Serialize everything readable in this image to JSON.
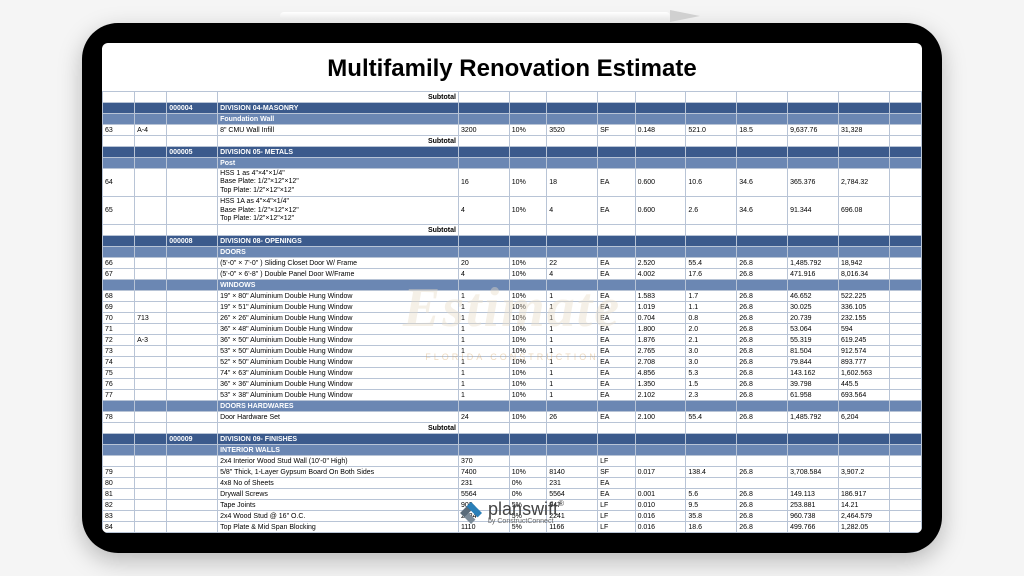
{
  "title": "Multifamily Renovation Estimate",
  "watermark": "Estimate",
  "watermark_sub": "FLORIDA CONSTRUCTION",
  "logo": {
    "main": "planswift",
    "sub": "by ConstructConnect"
  },
  "subtotal_label": "Subtotal",
  "colors": {
    "division_bg": "#3b5a8c",
    "subhead_bg": "#6b87b3",
    "grid_border": "#b8c4d6",
    "text": "#000000",
    "background": "#ffffff",
    "tablet_frame": "#000000"
  },
  "columns": [
    "row",
    "ref",
    "code",
    "description",
    "c1",
    "c2",
    "c3",
    "c4",
    "c5",
    "c6",
    "c7",
    "c8",
    "c9",
    "c10"
  ],
  "rows": [
    {
      "type": "subtotal",
      "cells": [
        "",
        "",
        "",
        "Subtotal",
        "",
        "",
        "",
        "",
        "",
        "",
        "",
        "",
        "",
        ""
      ]
    },
    {
      "type": "division",
      "cells": [
        "",
        "",
        "000004",
        "DIVISION 04-MASONRY",
        "",
        "",
        "",
        "",
        "",
        "",
        "",
        "",
        "",
        ""
      ]
    },
    {
      "type": "subhead",
      "cells": [
        "",
        "",
        "",
        "Foundation Wall",
        "",
        "",
        "",
        "",
        "",
        "",
        "",
        "",
        "",
        ""
      ]
    },
    {
      "type": "data",
      "cells": [
        "63",
        "A-4",
        "",
        "8\" CMU Wall Infill",
        "3200",
        "10%",
        "3520",
        "SF",
        "0.148",
        "521.0",
        "18.5",
        "9,637.76",
        "31,328",
        ""
      ]
    },
    {
      "type": "subtotal",
      "cells": [
        "",
        "",
        "",
        "Subtotal",
        "",
        "",
        "",
        "",
        "",
        "",
        "",
        "",
        "",
        ""
      ]
    },
    {
      "type": "division",
      "cells": [
        "",
        "",
        "000005",
        "DIVISION 05- METALS",
        "",
        "",
        "",
        "",
        "",
        "",
        "",
        "",
        "",
        ""
      ]
    },
    {
      "type": "subhead",
      "cells": [
        "",
        "",
        "",
        "Post",
        "",
        "",
        "",
        "",
        "",
        "",
        "",
        "",
        "",
        ""
      ]
    },
    {
      "type": "data",
      "cells": [
        "64",
        "",
        "",
        "HSS 1  as 4\"×4\"×1/4\"\\nBase Plate: 1/2\"×12\"×12\"\\nTop Plate: 1/2\"×12\"×12\"",
        "16",
        "10%",
        "18",
        "EA",
        "0.600",
        "10.6",
        "34.6",
        "365.376",
        "2,784.32",
        ""
      ]
    },
    {
      "type": "data",
      "cells": [
        "65",
        "",
        "",
        "HSS 1A  as 4\"×4\"×1/4\"\\nBase Plate: 1/2\"×12\"×12\"\\nTop Plate: 1/2\"×12\"×12\"",
        "4",
        "10%",
        "4",
        "EA",
        "0.600",
        "2.6",
        "34.6",
        "91.344",
        "696.08",
        ""
      ]
    },
    {
      "type": "subtotal",
      "cells": [
        "",
        "",
        "",
        "Subtotal",
        "",
        "",
        "",
        "",
        "",
        "",
        "",
        "",
        "",
        ""
      ]
    },
    {
      "type": "division",
      "cells": [
        "",
        "",
        "000008",
        "DIVISION 08- OPENINGS",
        "",
        "",
        "",
        "",
        "",
        "",
        "",
        "",
        "",
        ""
      ]
    },
    {
      "type": "subhead",
      "cells": [
        "",
        "",
        "",
        "DOORS",
        "",
        "",
        "",
        "",
        "",
        "",
        "",
        "",
        "",
        ""
      ]
    },
    {
      "type": "data",
      "cells": [
        "66",
        "",
        "",
        "(5'-0\" × 7'-0\" ) Sliding Closet Door W/ Frame",
        "20",
        "10%",
        "22",
        "EA",
        "2.520",
        "55.4",
        "26.8",
        "1,485.792",
        "18,942",
        ""
      ]
    },
    {
      "type": "data",
      "cells": [
        "67",
        "",
        "",
        "(5'-0\" × 6'-8\" ) Double Panel Door W/Frame",
        "4",
        "10%",
        "4",
        "EA",
        "4.002",
        "17.6",
        "26.8",
        "471.916",
        "8,016.34",
        ""
      ]
    },
    {
      "type": "subhead",
      "cells": [
        "",
        "",
        "",
        "WINDOWS",
        "",
        "",
        "",
        "",
        "",
        "",
        "",
        "",
        "",
        ""
      ]
    },
    {
      "type": "data",
      "cells": [
        "68",
        "",
        "",
        "19\" × 80\" Aluminium Double Hung Window",
        "1",
        "10%",
        "1",
        "EA",
        "1.583",
        "1.7",
        "26.8",
        "46.652",
        "522.225",
        ""
      ]
    },
    {
      "type": "data",
      "cells": [
        "69",
        "",
        "",
        "19\" × 51\" Aluminium Double Hung Window",
        "1",
        "10%",
        "1",
        "EA",
        "1.019",
        "1.1",
        "26.8",
        "30.025",
        "336.105",
        ""
      ]
    },
    {
      "type": "data",
      "cells": [
        "70",
        "713",
        "",
        "26\" × 26\" Aluminium Double Hung Window",
        "1",
        "10%",
        "1",
        "EA",
        "0.704",
        "0.8",
        "26.8",
        "20.739",
        "232.155",
        ""
      ]
    },
    {
      "type": "data",
      "cells": [
        "71",
        "",
        "",
        "36\" × 48\" Aluminium Double Hung Window",
        "1",
        "10%",
        "1",
        "EA",
        "1.800",
        "2.0",
        "26.8",
        "53.064",
        "594",
        ""
      ]
    },
    {
      "type": "data",
      "cells": [
        "72",
        "A-3",
        "",
        "36\" × 50\" Aluminium Double Hung Window",
        "1",
        "10%",
        "1",
        "EA",
        "1.876",
        "2.1",
        "26.8",
        "55.319",
        "619.245",
        ""
      ]
    },
    {
      "type": "data",
      "cells": [
        "73",
        "",
        "",
        "53\" × 50\" Aluminium Double Hung Window",
        "1",
        "10%",
        "1",
        "EA",
        "2.765",
        "3.0",
        "26.8",
        "81.504",
        "912.574",
        ""
      ]
    },
    {
      "type": "data",
      "cells": [
        "74",
        "",
        "",
        "52\" × 50\" Aluminium Double Hung Window",
        "1",
        "10%",
        "1",
        "EA",
        "2.708",
        "3.0",
        "26.8",
        "79.844",
        "893.777",
        ""
      ]
    },
    {
      "type": "data",
      "cells": [
        "75",
        "",
        "",
        "74\" × 63\" Aluminium Double Hung Window",
        "1",
        "10%",
        "1",
        "EA",
        "4.856",
        "5.3",
        "26.8",
        "143.162",
        "1,602.563",
        ""
      ]
    },
    {
      "type": "data",
      "cells": [
        "76",
        "",
        "",
        "36\" × 36\" Aluminium Double Hung Window",
        "1",
        "10%",
        "1",
        "EA",
        "1.350",
        "1.5",
        "26.8",
        "39.798",
        "445.5",
        ""
      ]
    },
    {
      "type": "data",
      "cells": [
        "77",
        "",
        "",
        "53\" × 38\" Aluminium Double Hung Window",
        "1",
        "10%",
        "1",
        "EA",
        "2.102",
        "2.3",
        "26.8",
        "61.958",
        "693.564",
        ""
      ]
    },
    {
      "type": "subhead",
      "cells": [
        "",
        "",
        "",
        "DOORS HARDWARES",
        "",
        "",
        "",
        "",
        "",
        "",
        "",
        "",
        "",
        ""
      ]
    },
    {
      "type": "data",
      "cells": [
        "78",
        "",
        "",
        "Door Hardware Set",
        "24",
        "10%",
        "26",
        "EA",
        "2.100",
        "55.4",
        "26.8",
        "1,485.792",
        "6,204",
        ""
      ]
    },
    {
      "type": "subtotal",
      "cells": [
        "",
        "",
        "",
        "Subtotal",
        "",
        "",
        "",
        "",
        "",
        "",
        "",
        "",
        "",
        ""
      ]
    },
    {
      "type": "division",
      "cells": [
        "",
        "",
        "000009",
        "DIVISION 09- FINISHES",
        "",
        "",
        "",
        "",
        "",
        "",
        "",
        "",
        "",
        ""
      ]
    },
    {
      "type": "subhead",
      "cells": [
        "",
        "",
        "",
        "INTERIOR WALLS",
        "",
        "",
        "",
        "",
        "",
        "",
        "",
        "",
        "",
        ""
      ]
    },
    {
      "type": "data",
      "cells": [
        "",
        "",
        "",
        "2x4 Interior Wood Stud Wall (10'-0\" High)",
        "370",
        "",
        "",
        "LF",
        "",
        "",
        "",
        "",
        "",
        ""
      ]
    },
    {
      "type": "data",
      "cells": [
        "79",
        "",
        "",
        "5/8\" Thick, 1-Layer Gypsum Board On Both Sides",
        "7400",
        "10%",
        "8140",
        "SF",
        "0.017",
        "138.4",
        "26.8",
        "3,708.584",
        "3,907.2",
        ""
      ]
    },
    {
      "type": "data",
      "cells": [
        "80",
        "",
        "",
        "4x8 No of  Sheets",
        "231",
        "0%",
        "231",
        "EA",
        "",
        "",
        "",
        "",
        "",
        ""
      ]
    },
    {
      "type": "data",
      "cells": [
        "81",
        "",
        "",
        "Drywall Screws",
        "5564",
        "0%",
        "5564",
        "EA",
        "0.001",
        "5.6",
        "26.8",
        "149.113",
        "186.917",
        ""
      ]
    },
    {
      "type": "data",
      "cells": [
        "82",
        "",
        "",
        "Tape Joints",
        "902",
        "5%",
        "947",
        "LF",
        "0.010",
        "9.5",
        "26.8",
        "253.881",
        "14.21",
        ""
      ]
    },
    {
      "type": "data",
      "cells": [
        "83",
        "",
        "",
        "2x4 Wood Stud @ 16\" O.C.",
        "2134",
        "5%",
        "2241",
        "LF",
        "0.016",
        "35.8",
        "26.8",
        "960.738",
        "2,464.579",
        ""
      ]
    },
    {
      "type": "data",
      "cells": [
        "84",
        "",
        "",
        "Top Plate & Mid Span Blocking",
        "1110",
        "5%",
        "1166",
        "LF",
        "0.016",
        "18.6",
        "26.8",
        "499.766",
        "1,282.05",
        ""
      ]
    },
    {
      "type": "data",
      "cells": [
        "85",
        "",
        "",
        "P.T Bottom Plate",
        "370",
        "5%",
        "389",
        "LF",
        "0.016",
        "6.2",
        "26.8",
        "166.589",
        "505.05",
        ""
      ]
    }
  ]
}
